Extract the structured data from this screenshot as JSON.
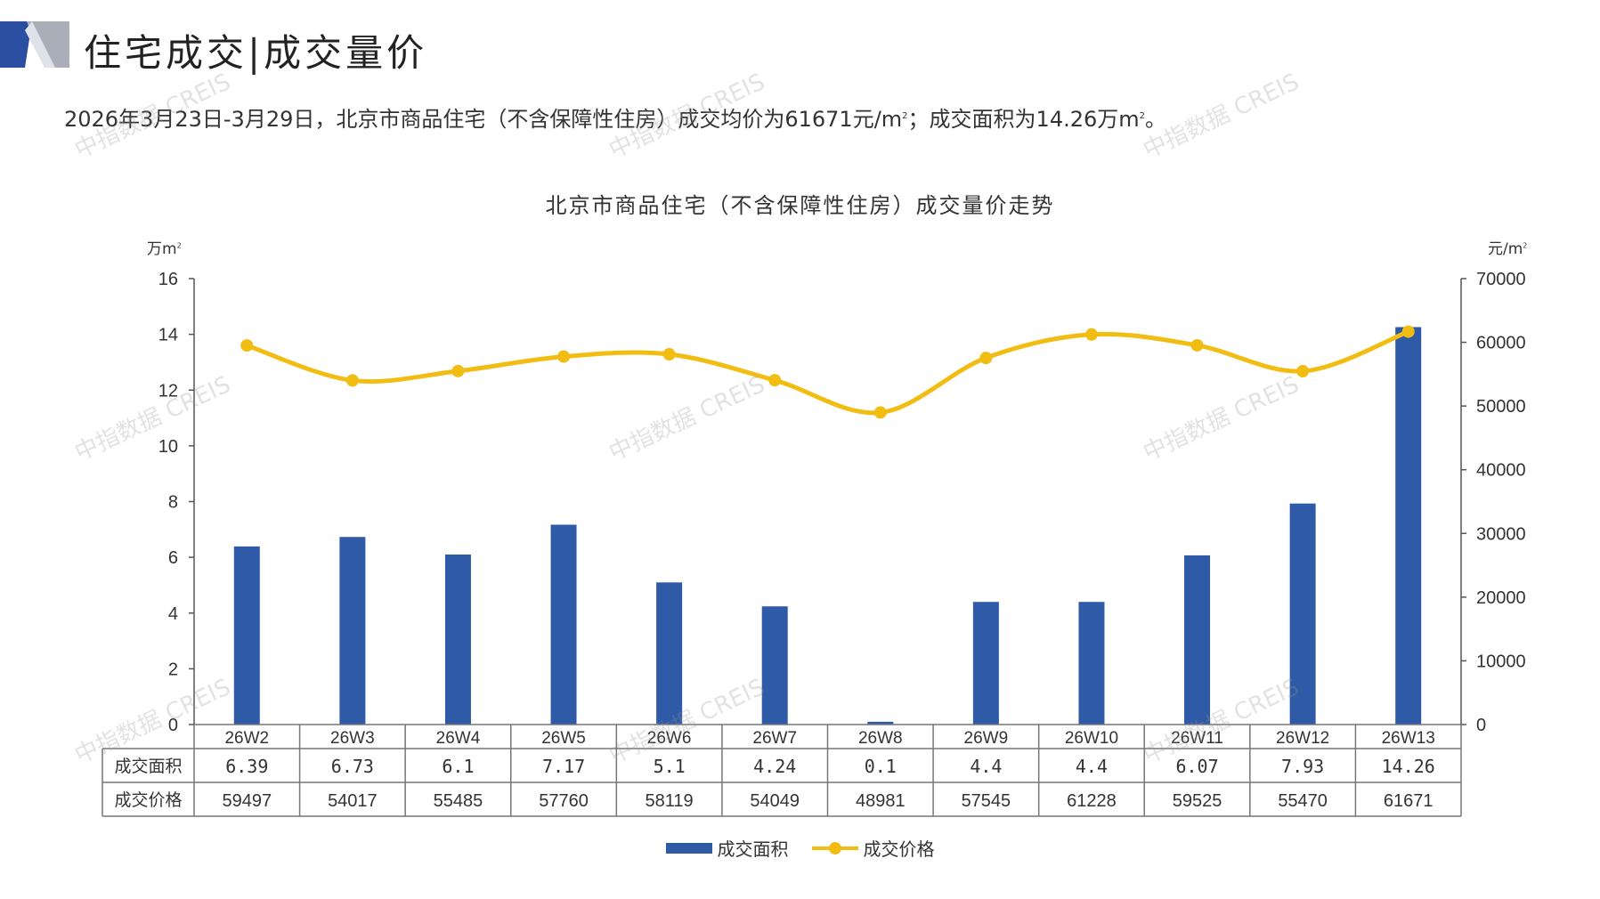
{
  "header": {
    "title": "住宅成交|成交量价"
  },
  "summary": {
    "text_before": "2026年3月23日-3月29日，北京市商品住宅（不含保障性住房）成交均价为61671元/m",
    "sup1": "2",
    "text_mid": "；成交面积为14.26万m",
    "sup2": "2",
    "text_after": "。"
  },
  "watermark": "中指数据 CREIS",
  "colors": {
    "bar": "#2e5aa8",
    "line": "#f2bd13",
    "logo_dark": "#2b4fa0",
    "logo_grey": "#a9aeb8"
  },
  "chart_data": {
    "type": "bar",
    "title": "北京市商品住宅（不含保障性住房）成交量价走势",
    "left_axis_unit": "万m",
    "left_axis_unit_sup": "2",
    "right_axis_unit": "元/m",
    "right_axis_unit_sup": "2",
    "categories": [
      "26W2",
      "26W3",
      "26W4",
      "26W5",
      "26W6",
      "26W7",
      "26W8",
      "26W9",
      "26W10",
      "26W11",
      "26W12",
      "26W13"
    ],
    "ylim_left": [
      0,
      16
    ],
    "yticks_left": [
      0,
      2,
      4,
      6,
      8,
      10,
      12,
      14,
      16
    ],
    "ylim_right": [
      0,
      70000
    ],
    "yticks_right": [
      0,
      10000,
      20000,
      30000,
      40000,
      50000,
      60000,
      70000
    ],
    "series": [
      {
        "name": "成交面积",
        "kind": "bar",
        "axis": "left",
        "values": [
          6.39,
          6.73,
          6.1,
          7.17,
          5.1,
          4.24,
          0.1,
          4.4,
          4.4,
          6.07,
          7.93,
          14.26
        ],
        "labels": [
          "6.39",
          "6.73",
          "6.1",
          "7.17",
          "5.1",
          "4.24",
          "0.1",
          "4.4",
          "4.4",
          "6.07",
          "7.93",
          "14.26"
        ]
      },
      {
        "name": "成交价格",
        "kind": "line",
        "axis": "right",
        "values": [
          59497,
          54017,
          55485,
          57760,
          58119,
          54049,
          48981,
          57545,
          61228,
          59525,
          55470,
          61671
        ],
        "labels": [
          "59497",
          "54017",
          "55485",
          "57760",
          "58119",
          "54049",
          "48981",
          "57545",
          "61228",
          "59525",
          "55470",
          "61671"
        ]
      }
    ],
    "legend_position": "bottom",
    "grid": false,
    "data_table": true
  }
}
